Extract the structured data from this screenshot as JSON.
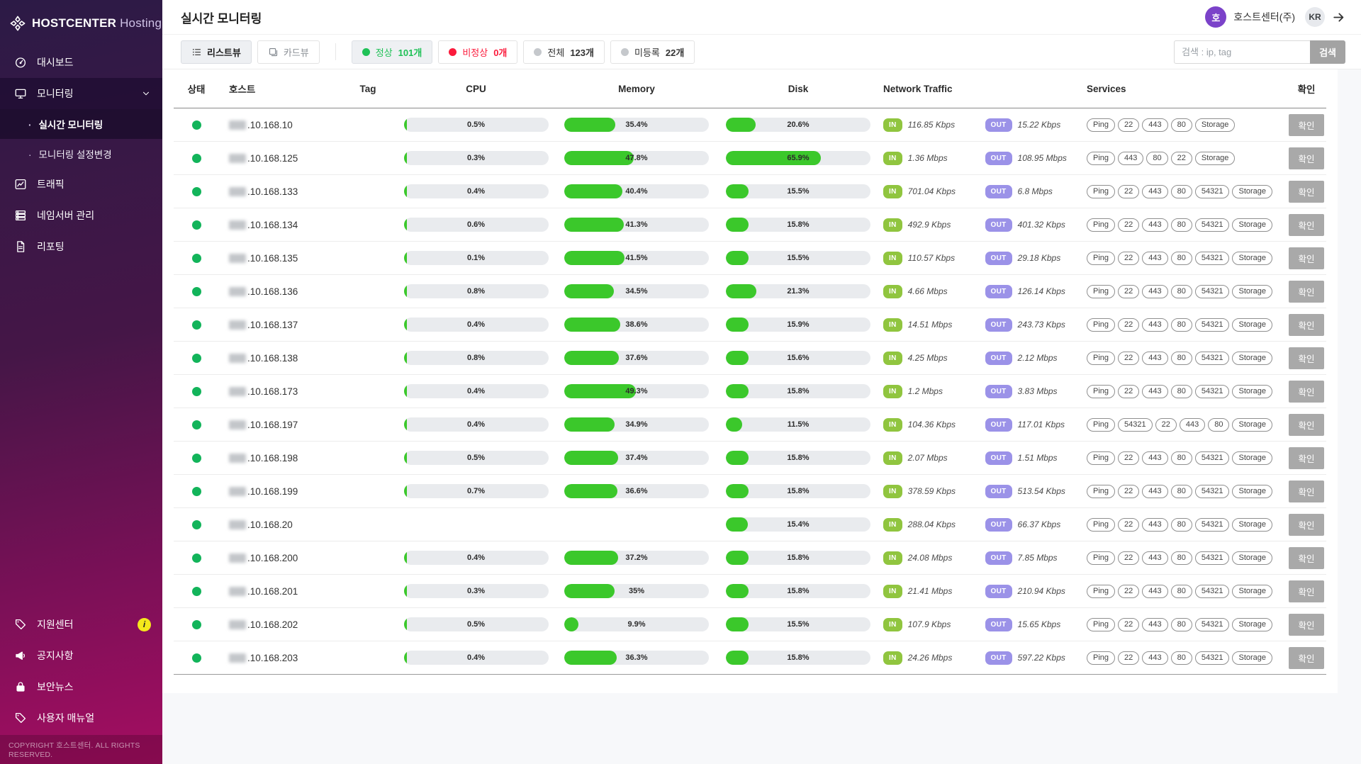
{
  "brand": {
    "name": "HOSTCENTER",
    "suffix": "Hosting",
    "icon": "pinwheel-icon"
  },
  "sidebar": {
    "items": [
      {
        "label": "대시보드",
        "icon": "gauge-icon"
      },
      {
        "label": "모니터링",
        "icon": "monitor-icon",
        "active": true,
        "expanded": true,
        "children": [
          {
            "label": "실시간 모니터링",
            "active": true
          },
          {
            "label": "모니터링 설정변경",
            "active": false
          }
        ]
      },
      {
        "label": "트래픽",
        "icon": "chart-icon"
      },
      {
        "label": "네임서버 관리",
        "icon": "server-icon"
      },
      {
        "label": "리포팅",
        "icon": "document-icon"
      }
    ],
    "bottom_items": [
      {
        "label": "지원센터",
        "icon": "tag-icon",
        "badge": "i"
      },
      {
        "label": "공지사항",
        "icon": "megaphone-icon"
      },
      {
        "label": "보안뉴스",
        "icon": "lock-icon"
      },
      {
        "label": "사용자 매뉴얼",
        "icon": "tag-icon"
      }
    ],
    "copyright": "COPYRIGHT 호스트센터. ALL RIGHTS RESERVED."
  },
  "header": {
    "title": "실시간 모니터링",
    "account": {
      "avatar_text": "호",
      "name": "호스트센터(주)",
      "locale": "KR",
      "logout_icon": "arrow-right-icon"
    }
  },
  "toolbar": {
    "view_buttons": [
      {
        "label": "리스트뷰",
        "icon": "list-icon",
        "active": true
      },
      {
        "label": "카드뷰",
        "icon": "card-icon",
        "active": false
      }
    ],
    "filters": [
      {
        "label": "정상",
        "count": "101개",
        "dot_color": "#1fc157",
        "style": "green"
      },
      {
        "label": "비정상",
        "count": "0개",
        "dot_color": "#fb1b3c",
        "style": "red"
      },
      {
        "label": "전체",
        "count": "123개",
        "dot_color": "#c5c8cc",
        "style": "plain"
      },
      {
        "label": "미등록",
        "count": "22개",
        "dot_color": "#c5c8cc",
        "style": "plain"
      }
    ],
    "search": {
      "placeholder": "검색 : ip, tag",
      "button_label": "검색"
    }
  },
  "table": {
    "columns": [
      {
        "key": "status",
        "label": "상태"
      },
      {
        "key": "host",
        "label": "호스트"
      },
      {
        "key": "tag",
        "label": "Tag"
      },
      {
        "key": "cpu",
        "label": "CPU"
      },
      {
        "key": "memory",
        "label": "Memory"
      },
      {
        "key": "disk",
        "label": "Disk"
      },
      {
        "key": "network",
        "label": "Network Traffic"
      },
      {
        "key": "services",
        "label": "Services"
      },
      {
        "key": "confirm",
        "label": "확인"
      }
    ],
    "in_label": "IN",
    "out_label": "OUT",
    "confirm_label": "확인",
    "rows": [
      {
        "status": "normal",
        "host": ".10.168.10",
        "cpu": {
          "label": "0.5%",
          "pct": 0.5
        },
        "memory": {
          "label": "35.4%",
          "pct": 35.4
        },
        "disk": {
          "label": "20.6%",
          "pct": 20.6
        },
        "traffic_in": "116.85 Kbps",
        "traffic_out": "15.22 Kbps",
        "services": [
          "Ping",
          "22",
          "443",
          "80",
          "Storage"
        ]
      },
      {
        "status": "normal",
        "host": ".10.168.125",
        "cpu": {
          "label": "0.3%",
          "pct": 0.3
        },
        "memory": {
          "label": "47.8%",
          "pct": 47.8
        },
        "disk": {
          "label": "65.9%",
          "pct": 65.9
        },
        "traffic_in": "1.36 Mbps",
        "traffic_out": "108.95 Mbps",
        "services": [
          "Ping",
          "443",
          "80",
          "22",
          "Storage"
        ]
      },
      {
        "status": "normal",
        "host": ".10.168.133",
        "cpu": {
          "label": "0.4%",
          "pct": 0.4
        },
        "memory": {
          "label": "40.4%",
          "pct": 40.4
        },
        "disk": {
          "label": "15.5%",
          "pct": 15.5
        },
        "traffic_in": "701.04 Kbps",
        "traffic_out": "6.8 Mbps",
        "services": [
          "Ping",
          "22",
          "443",
          "80",
          "54321",
          "Storage"
        ]
      },
      {
        "status": "normal",
        "host": ".10.168.134",
        "cpu": {
          "label": "0.6%",
          "pct": 0.6
        },
        "memory": {
          "label": "41.3%",
          "pct": 41.3
        },
        "disk": {
          "label": "15.8%",
          "pct": 15.8
        },
        "traffic_in": "492.9 Kbps",
        "traffic_out": "401.32 Kbps",
        "services": [
          "Ping",
          "22",
          "443",
          "80",
          "54321",
          "Storage"
        ]
      },
      {
        "status": "normal",
        "host": ".10.168.135",
        "cpu": {
          "label": "0.1%",
          "pct": 0.1
        },
        "memory": {
          "label": "41.5%",
          "pct": 41.5
        },
        "disk": {
          "label": "15.5%",
          "pct": 15.5
        },
        "traffic_in": "110.57 Kbps",
        "traffic_out": "29.18 Kbps",
        "services": [
          "Ping",
          "22",
          "443",
          "80",
          "54321",
          "Storage"
        ]
      },
      {
        "status": "normal",
        "host": ".10.168.136",
        "cpu": {
          "label": "0.8%",
          "pct": 0.8
        },
        "memory": {
          "label": "34.5%",
          "pct": 34.5
        },
        "disk": {
          "label": "21.3%",
          "pct": 21.3
        },
        "traffic_in": "4.66 Mbps",
        "traffic_out": "126.14 Kbps",
        "services": [
          "Ping",
          "22",
          "443",
          "80",
          "54321",
          "Storage"
        ]
      },
      {
        "status": "normal",
        "host": ".10.168.137",
        "cpu": {
          "label": "0.4%",
          "pct": 0.4
        },
        "memory": {
          "label": "38.6%",
          "pct": 38.6
        },
        "disk": {
          "label": "15.9%",
          "pct": 15.9
        },
        "traffic_in": "14.51 Mbps",
        "traffic_out": "243.73 Kbps",
        "services": [
          "Ping",
          "22",
          "443",
          "80",
          "54321",
          "Storage"
        ]
      },
      {
        "status": "normal",
        "host": ".10.168.138",
        "cpu": {
          "label": "0.8%",
          "pct": 0.8
        },
        "memory": {
          "label": "37.6%",
          "pct": 37.6
        },
        "disk": {
          "label": "15.6%",
          "pct": 15.6
        },
        "traffic_in": "4.25 Mbps",
        "traffic_out": "2.12 Mbps",
        "services": [
          "Ping",
          "22",
          "443",
          "80",
          "54321",
          "Storage"
        ]
      },
      {
        "status": "normal",
        "host": ".10.168.173",
        "cpu": {
          "label": "0.4%",
          "pct": 0.4
        },
        "memory": {
          "label": "49.3%",
          "pct": 49.3
        },
        "disk": {
          "label": "15.8%",
          "pct": 15.8
        },
        "traffic_in": "1.2 Mbps",
        "traffic_out": "3.83 Mbps",
        "services": [
          "Ping",
          "22",
          "443",
          "80",
          "54321",
          "Storage"
        ]
      },
      {
        "status": "normal",
        "host": ".10.168.197",
        "cpu": {
          "label": "0.4%",
          "pct": 0.4
        },
        "memory": {
          "label": "34.9%",
          "pct": 34.9
        },
        "disk": {
          "label": "11.5%",
          "pct": 11.5
        },
        "traffic_in": "104.36 Kbps",
        "traffic_out": "117.01 Kbps",
        "services": [
          "Ping",
          "54321",
          "22",
          "443",
          "80",
          "Storage"
        ]
      },
      {
        "status": "normal",
        "host": ".10.168.198",
        "cpu": {
          "label": "0.5%",
          "pct": 0.5
        },
        "memory": {
          "label": "37.4%",
          "pct": 37.4
        },
        "disk": {
          "label": "15.8%",
          "pct": 15.8
        },
        "traffic_in": "2.07 Mbps",
        "traffic_out": "1.51 Mbps",
        "services": [
          "Ping",
          "22",
          "443",
          "80",
          "54321",
          "Storage"
        ]
      },
      {
        "status": "normal",
        "host": ".10.168.199",
        "cpu": {
          "label": "0.7%",
          "pct": 0.7
        },
        "memory": {
          "label": "36.6%",
          "pct": 36.6
        },
        "disk": {
          "label": "15.8%",
          "pct": 15.8
        },
        "traffic_in": "378.59 Kbps",
        "traffic_out": "513.54 Kbps",
        "services": [
          "Ping",
          "22",
          "443",
          "80",
          "54321",
          "Storage"
        ]
      },
      {
        "status": "normal",
        "host": ".10.168.20",
        "cpu": null,
        "memory": null,
        "disk": {
          "label": "15.4%",
          "pct": 15.4
        },
        "traffic_in": "288.04 Kbps",
        "traffic_out": "66.37 Kbps",
        "services": [
          "Ping",
          "22",
          "443",
          "80",
          "54321",
          "Storage"
        ]
      },
      {
        "status": "normal",
        "host": ".10.168.200",
        "cpu": {
          "label": "0.4%",
          "pct": 0.4
        },
        "memory": {
          "label": "37.2%",
          "pct": 37.2
        },
        "disk": {
          "label": "15.8%",
          "pct": 15.8
        },
        "traffic_in": "24.08 Mbps",
        "traffic_out": "7.85 Mbps",
        "services": [
          "Ping",
          "22",
          "443",
          "80",
          "54321",
          "Storage"
        ]
      },
      {
        "status": "normal",
        "host": ".10.168.201",
        "cpu": {
          "label": "0.3%",
          "pct": 0.3
        },
        "memory": {
          "label": "35%",
          "pct": 35
        },
        "disk": {
          "label": "15.8%",
          "pct": 15.8
        },
        "traffic_in": "21.41 Mbps",
        "traffic_out": "210.94 Kbps",
        "services": [
          "Ping",
          "22",
          "443",
          "80",
          "54321",
          "Storage"
        ]
      },
      {
        "status": "normal",
        "host": ".10.168.202",
        "cpu": {
          "label": "0.5%",
          "pct": 0.5
        },
        "memory": {
          "label": "9.9%",
          "pct": 9.9
        },
        "disk": {
          "label": "15.5%",
          "pct": 15.5
        },
        "traffic_in": "107.9 Kbps",
        "traffic_out": "15.65 Kbps",
        "services": [
          "Ping",
          "22",
          "443",
          "80",
          "54321",
          "Storage"
        ]
      },
      {
        "status": "normal",
        "host": ".10.168.203",
        "cpu": {
          "label": "0.4%",
          "pct": 0.4
        },
        "memory": {
          "label": "36.3%",
          "pct": 36.3
        },
        "disk": {
          "label": "15.8%",
          "pct": 15.8
        },
        "traffic_in": "24.26 Mbps",
        "traffic_out": "597.22 Kbps",
        "services": [
          "Ping",
          "22",
          "443",
          "80",
          "54321",
          "Storage"
        ]
      }
    ]
  },
  "colors": {
    "sidebar_top": "#2c1a46",
    "sidebar_bottom": "#a50d61",
    "accent_purple": "#7b42c9",
    "green": "#1fc157",
    "bar_green": "#3bc82b",
    "red": "#fb1b3c",
    "in_badge": "#90c53f",
    "out_badge": "#9b92e8",
    "confirm_gray": "#a9a9a9",
    "status_dot": "#12b45a"
  }
}
